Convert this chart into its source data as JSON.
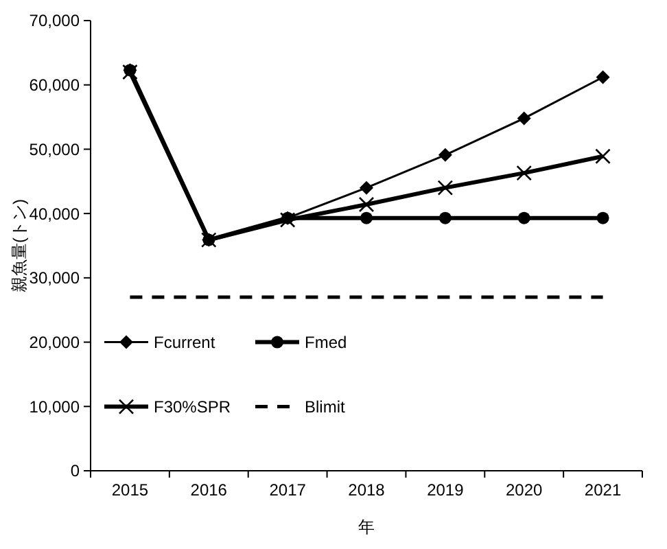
{
  "chart_data": {
    "type": "line",
    "xlabel": "年",
    "ylabel": "親魚量(トン)",
    "categories": [
      "2015",
      "2016",
      "2017",
      "2018",
      "2019",
      "2020",
      "2021"
    ],
    "series": [
      {
        "name": "Fcurrent",
        "color": "#000000",
        "marker": "diamond",
        "line_style": "solid",
        "values": [
          62300,
          35900,
          39300,
          44000,
          49100,
          54800,
          61200
        ]
      },
      {
        "name": "Fmed",
        "color": "#000000",
        "marker": "circle",
        "line_style": "solid",
        "values": [
          62300,
          35900,
          39300,
          39300,
          39300,
          39300,
          39300
        ]
      },
      {
        "name": "F30%SPR",
        "color": "#000000",
        "marker": "cross",
        "line_style": "solid",
        "values": [
          62000,
          35900,
          39000,
          41400,
          44000,
          46300,
          48900
        ]
      },
      {
        "name": "Blimit",
        "color": "#000000",
        "marker": "none",
        "line_style": "dashed",
        "values": [
          27000,
          27000,
          27000,
          27000,
          27000,
          27000,
          27000
        ]
      }
    ],
    "ylim": [
      0,
      70000
    ],
    "yticks": [
      0,
      {
        "value": 10000,
        "label": "10,000"
      },
      {
        "value": 20000,
        "label": "20,000"
      },
      {
        "value": 30000,
        "label": "30,000"
      },
      {
        "value": 40000,
        "label": "40,000"
      },
      {
        "value": 50000,
        "label": "50,000"
      },
      {
        "value": 60000,
        "label": "60,000"
      },
      {
        "value": 70000,
        "label": "70,000"
      }
    ],
    "grid": false,
    "legend": "bottom left"
  }
}
